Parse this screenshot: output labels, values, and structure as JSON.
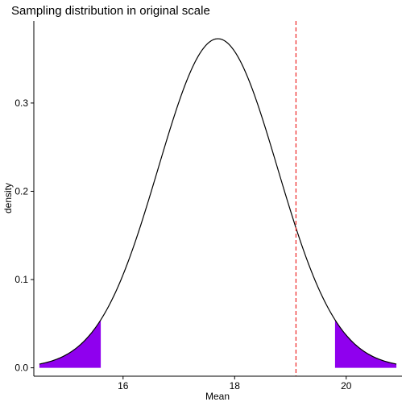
{
  "chart_data": {
    "type": "area",
    "title": "Sampling distribution in original scale",
    "xlabel": "Mean",
    "ylabel": "density",
    "xlim": [
      14.4,
      21.0
    ],
    "ylim": [
      -0.0095,
      0.393
    ],
    "x_ticks": [
      16,
      18,
      20
    ],
    "x_tick_labels": [
      "16",
      "18",
      "20"
    ],
    "y_ticks": [
      0.0,
      0.1,
      0.2,
      0.3
    ],
    "y_tick_labels": [
      "0.0",
      "0.1",
      "0.2",
      "0.3"
    ],
    "curve": {
      "distribution": "normal",
      "mean": 17.7,
      "sd": 1.07,
      "x_range": [
        14.5,
        20.9
      ]
    },
    "shaded_regions": [
      {
        "x_from": 14.5,
        "x_to": 15.6
      },
      {
        "x_from": 19.8,
        "x_to": 20.9
      }
    ],
    "vline": {
      "x": 19.1
    },
    "grid": false,
    "legend": "none"
  },
  "colors": {
    "curve": "#000000",
    "shade": "#8f00ee",
    "vline": "#ee2222"
  }
}
